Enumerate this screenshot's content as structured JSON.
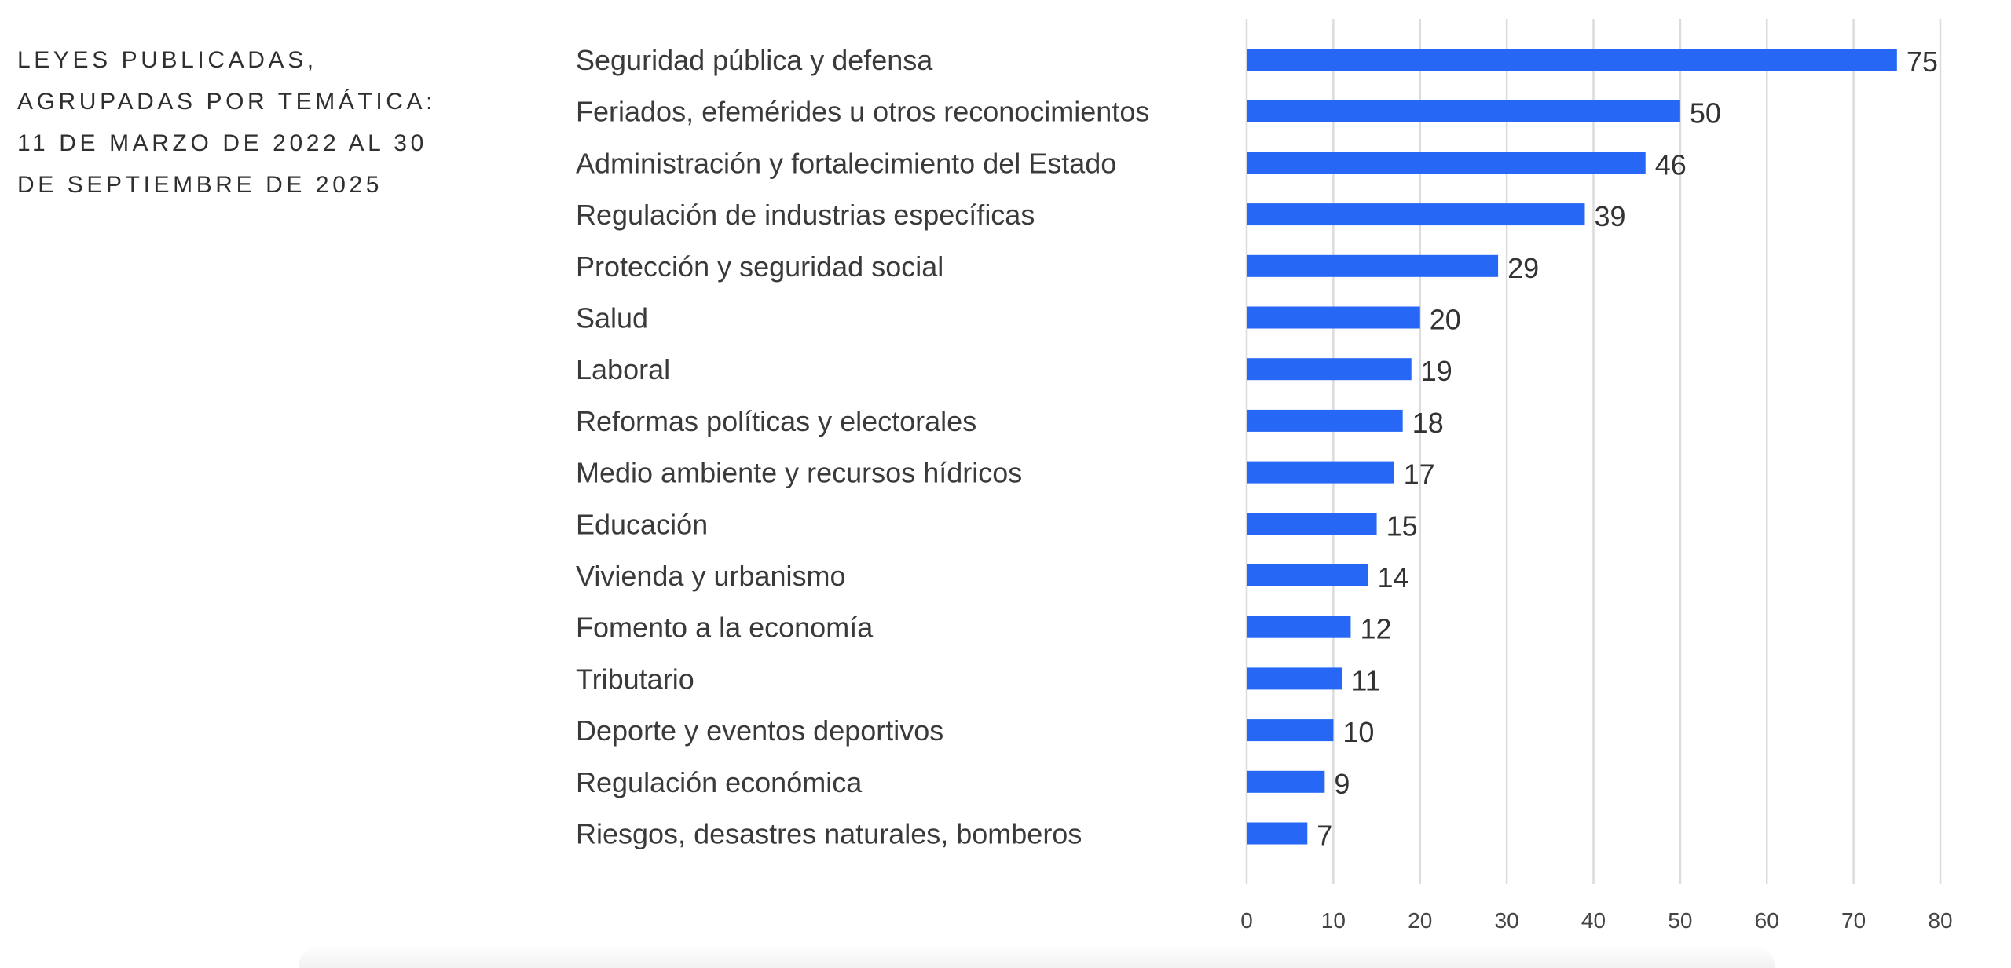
{
  "chart_data": {
    "type": "bar",
    "orientation": "horizontal",
    "title_lines": [
      "LEYES PUBLICADAS,",
      "AGRUPADAS POR TEMÁTICA:",
      "11 DE MARZO DE 2022 AL 30",
      "DE SEPTIEMBRE DE 2025"
    ],
    "categories": [
      "Seguridad pública y defensa",
      "Feriados, efemérides u otros reconocimientos",
      "Administración y fortalecimiento del Estado",
      "Regulación de industrias específicas",
      "Protección y seguridad social",
      "Salud",
      "Laboral",
      "Reformas políticas y electorales",
      "Medio ambiente y recursos hídricos",
      "Educación",
      "Vivienda y urbanismo",
      "Fomento a la economía",
      "Tributario",
      "Deporte y eventos deportivos",
      "Regulación económica",
      "Riesgos, desastres naturales, bomberos"
    ],
    "values": [
      75,
      50,
      46,
      39,
      29,
      20,
      19,
      18,
      17,
      15,
      14,
      12,
      11,
      10,
      9,
      7
    ],
    "xlabel": "",
    "ylabel": "",
    "xlim": [
      0,
      80
    ],
    "x_ticks": [
      0,
      10,
      20,
      30,
      40,
      50,
      60,
      70,
      80
    ],
    "grid": "vertical",
    "legend": "none",
    "bar_color": "#2667F5",
    "data_labels": true
  }
}
